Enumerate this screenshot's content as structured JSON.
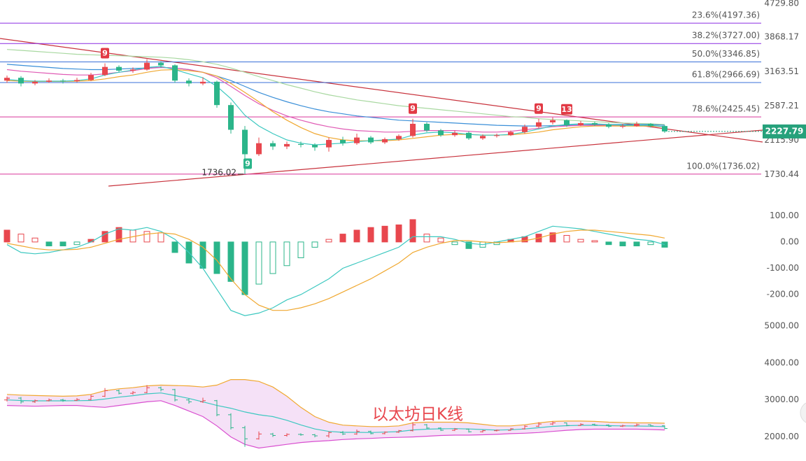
{
  "chart_data": [
    {
      "type": "candlestick",
      "title": "以太坊日K线",
      "log_scale": true,
      "ylim": [
        1467,
        4729.8
      ],
      "yticks": [
        {
          "value": 4729.8,
          "label": "4729.80"
        },
        3868.17,
        3163.51,
        2587.21,
        {
          "value": 2115.9,
          "label": "2115.90"
        },
        1730.44
      ],
      "up_color": "#e8474e",
      "down_color": "#2bb58a",
      "open": [
        3000,
        3050,
        2950,
        2980,
        3000,
        2990,
        3010,
        3100,
        3250,
        3180,
        3200,
        3330,
        3280,
        3000,
        2950,
        2980,
        2600,
        2250,
        1950,
        2080,
        2040,
        2070,
        2060,
        2030,
        2120,
        2080,
        2150,
        2090,
        2130,
        2170,
        2330,
        2240,
        2180,
        2210,
        2140,
        2170,
        2180,
        2220,
        2290,
        2350,
        2380,
        2310,
        2340,
        2320,
        2290,
        2300,
        2330,
        2300
      ],
      "high": [
        3090,
        3080,
        3010,
        3040,
        3030,
        3050,
        3140,
        3320,
        3280,
        3240,
        3400,
        3360,
        3300,
        3040,
        3060,
        3000,
        2640,
        2300,
        2150,
        2110,
        2100,
        2100,
        2080,
        2150,
        2160,
        2200,
        2170,
        2150,
        2190,
        2400,
        2350,
        2260,
        2240,
        2230,
        2190,
        2200,
        2240,
        2320,
        2400,
        2420,
        2390,
        2370,
        2360,
        2340,
        2330,
        2360,
        2340,
        2310
      ],
      "low": [
        2960,
        2900,
        2920,
        2960,
        2950,
        2970,
        2990,
        3080,
        3150,
        3140,
        3180,
        3230,
        2960,
        2900,
        2920,
        2560,
        2200,
        1736.02,
        1930,
        2000,
        2010,
        2030,
        1990,
        1980,
        2050,
        2060,
        2070,
        2070,
        2110,
        2150,
        2220,
        2160,
        2160,
        2120,
        2120,
        2150,
        2170,
        2200,
        2270,
        2320,
        2290,
        2300,
        2300,
        2270,
        2270,
        2290,
        2280,
        2210
      ],
      "close": [
        3050,
        2950,
        2980,
        3000,
        2990,
        3010,
        3100,
        3250,
        3180,
        3200,
        3330,
        3280,
        3000,
        2950,
        2980,
        2600,
        2250,
        1950,
        2080,
        2040,
        2070,
        2060,
        2030,
        2120,
        2080,
        2150,
        2090,
        2130,
        2170,
        2330,
        2240,
        2180,
        2210,
        2140,
        2170,
        2180,
        2220,
        2290,
        2350,
        2380,
        2310,
        2340,
        2320,
        2290,
        2300,
        2330,
        2300,
        2227.79
      ],
      "series": [
        {
          "color": "#a8d8a0",
          "values": [
            3600,
            3580,
            3560,
            3540,
            3520,
            3500,
            3490,
            3480,
            3470,
            3460,
            3450,
            3440,
            3420,
            3390,
            3350,
            3300,
            3230,
            3150,
            3070,
            3000,
            2930,
            2870,
            2810,
            2760,
            2720,
            2680,
            2650,
            2620,
            2590,
            2570,
            2550,
            2530,
            2510,
            2490,
            2470,
            2450,
            2430,
            2420,
            2400,
            2390,
            2380,
            2370,
            2360,
            2350,
            2340,
            2335,
            2330,
            2320
          ]
        },
        {
          "color": "#3a8fd8",
          "values": [
            3300,
            3280,
            3260,
            3240,
            3220,
            3210,
            3200,
            3200,
            3210,
            3220,
            3230,
            3240,
            3230,
            3200,
            3150,
            3080,
            3000,
            2900,
            2800,
            2720,
            2650,
            2590,
            2540,
            2500,
            2470,
            2440,
            2420,
            2400,
            2380,
            2370,
            2360,
            2350,
            2340,
            2330,
            2320,
            2310,
            2305,
            2300,
            2300,
            2305,
            2310,
            2315,
            2320,
            2320,
            2320,
            2320,
            2320,
            2310
          ]
        },
        {
          "color": "#e05bb5",
          "values": [
            3200,
            3170,
            3150,
            3130,
            3110,
            3100,
            3100,
            3120,
            3150,
            3180,
            3220,
            3240,
            3230,
            3200,
            3150,
            3050,
            2900,
            2750,
            2620,
            2520,
            2440,
            2380,
            2330,
            2290,
            2260,
            2240,
            2230,
            2220,
            2220,
            2230,
            2240,
            2240,
            2240,
            2230,
            2220,
            2220,
            2230,
            2250,
            2270,
            2290,
            2300,
            2310,
            2310,
            2310,
            2305,
            2300,
            2300,
            2290
          ]
        },
        {
          "color": "#f0a830",
          "values": [
            3000,
            2990,
            2985,
            2985,
            2985,
            2990,
            3000,
            3030,
            3070,
            3100,
            3150,
            3190,
            3200,
            3180,
            3150,
            3080,
            2950,
            2800,
            2650,
            2500,
            2380,
            2280,
            2200,
            2150,
            2120,
            2110,
            2110,
            2110,
            2120,
            2140,
            2160,
            2180,
            2190,
            2190,
            2180,
            2180,
            2185,
            2200,
            2220,
            2250,
            2270,
            2290,
            2300,
            2300,
            2300,
            2300,
            2300,
            2290
          ]
        },
        {
          "color": "#3cc8c0",
          "values": [
            3020,
            3000,
            2990,
            2990,
            2990,
            3000,
            3030,
            3100,
            3150,
            3190,
            3240,
            3260,
            3200,
            3120,
            3050,
            2900,
            2700,
            2450,
            2300,
            2200,
            2120,
            2080,
            2060,
            2070,
            2080,
            2100,
            2110,
            2120,
            2130,
            2180,
            2210,
            2220,
            2210,
            2190,
            2180,
            2180,
            2190,
            2220,
            2260,
            2300,
            2320,
            2330,
            2330,
            2320,
            2310,
            2310,
            2310,
            2290
          ]
        }
      ],
      "levels": [
        {
          "label": "23.6%(4197.36)",
          "value": 4197.36,
          "color": "#8a2be2"
        },
        {
          "label": "38.2%(3727.00)",
          "value": 3727.0,
          "color": "#8a2be2"
        },
        {
          "label": "50.0%(3346.85)",
          "value": 3346.85,
          "color": "#3a6fd8"
        },
        {
          "label": "61.8%(2966.69)",
          "value": 2966.69,
          "color": "#3a6fd8"
        },
        {
          "label": "78.6%(2425.45)",
          "value": 2425.45,
          "color": "#d9369a"
        },
        {
          "label": "100.0%(1736.02)",
          "value": 1736.02,
          "color": "#d9369a"
        }
      ],
      "td_marks": [
        {
          "label": "9",
          "color": "#e23a45"
        },
        {
          "label": "9",
          "color": "#2bb58a"
        },
        {
          "label": "9",
          "color": "#e23a45"
        },
        {
          "label": "9",
          "color": "#e23a45"
        },
        {
          "label": "13",
          "color": "#e23a45"
        }
      ],
      "price_tag_color": "#26a17b"
    },
    {
      "type": "macd",
      "ylim": [
        -290,
        122
      ],
      "yticks": [
        {
          "value": 100,
          "label": "100.00"
        },
        {
          "value": 0,
          "label": "0.00"
        },
        {
          "value": -100,
          "label": "-100.00"
        },
        {
          "value": -200,
          "label": "-200.00"
        }
      ],
      "up_color": "#e8474e",
      "down_color": "#2bb58a",
      "values": [
        45,
        30,
        15,
        -15,
        -15,
        -10,
        10,
        40,
        55,
        45,
        40,
        35,
        -40,
        -80,
        -100,
        -120,
        -150,
        -200,
        -160,
        -120,
        -90,
        -60,
        -20,
        10,
        30,
        45,
        55,
        60,
        65,
        85,
        30,
        15,
        -10,
        -25,
        -20,
        -10,
        10,
        20,
        30,
        35,
        25,
        10,
        5,
        -10,
        -15,
        -15,
        -10,
        -20
      ],
      "series": [
        {
          "color": "#3cc8c0",
          "values": [
            -10,
            -40,
            -45,
            -40,
            -30,
            -20,
            0,
            30,
            50,
            45,
            55,
            40,
            10,
            -40,
            -100,
            -180,
            -260,
            -280,
            -270,
            -250,
            -220,
            -200,
            -170,
            -140,
            -100,
            -80,
            -60,
            -40,
            -20,
            20,
            20,
            20,
            10,
            -5,
            -10,
            0,
            10,
            20,
            40,
            60,
            55,
            50,
            40,
            30,
            20,
            10,
            5,
            -10
          ]
        },
        {
          "color": "#f0a830",
          "values": [
            -5,
            -15,
            -25,
            -30,
            -30,
            -28,
            -20,
            -5,
            10,
            20,
            30,
            35,
            30,
            10,
            -20,
            -70,
            -140,
            -200,
            -240,
            -260,
            -260,
            -250,
            -235,
            -215,
            -190,
            -165,
            -140,
            -110,
            -80,
            -40,
            -20,
            -5,
            5,
            5,
            0,
            -3,
            0,
            5,
            15,
            30,
            40,
            45,
            45,
            40,
            35,
            30,
            25,
            15
          ]
        }
      ]
    },
    {
      "type": "bollinger",
      "ylim": [
        1426,
        5111
      ],
      "yticks": [
        {
          "value": 5000,
          "label": "5000.00"
        },
        {
          "value": 4000,
          "label": "4000.00"
        },
        {
          "value": 3000,
          "label": "3000.00"
        },
        {
          "value": 2000,
          "label": "2000.00"
        }
      ],
      "band_fill": "#f3dcf6",
      "series": [
        {
          "color": "#f0a830",
          "values": [
            3150,
            3130,
            3120,
            3110,
            3100,
            3110,
            3150,
            3250,
            3300,
            3330,
            3380,
            3400,
            3390,
            3380,
            3350,
            3400,
            3550,
            3550,
            3500,
            3350,
            3100,
            2800,
            2550,
            2400,
            2320,
            2300,
            2280,
            2280,
            2300,
            2380,
            2400,
            2400,
            2400,
            2380,
            2340,
            2300,
            2300,
            2330,
            2380,
            2420,
            2430,
            2430,
            2420,
            2400,
            2390,
            2380,
            2380,
            2370
          ]
        },
        {
          "color": "#3cc8c0",
          "values": [
            3000,
            2985,
            2975,
            2975,
            2975,
            2980,
            2985,
            3025,
            3075,
            3115,
            3165,
            3190,
            3120,
            3040,
            2950,
            2850,
            2775,
            2675,
            2600,
            2550,
            2450,
            2325,
            2215,
            2150,
            2125,
            2125,
            2120,
            2130,
            2145,
            2190,
            2210,
            2220,
            2225,
            2215,
            2200,
            2185,
            2195,
            2215,
            2250,
            2285,
            2305,
            2315,
            2315,
            2305,
            2300,
            2295,
            2290,
            2280
          ]
        },
        {
          "color": "#d94fd0",
          "values": [
            2850,
            2840,
            2830,
            2840,
            2850,
            2850,
            2820,
            2800,
            2850,
            2900,
            2950,
            2980,
            2850,
            2700,
            2550,
            2300,
            2000,
            1800,
            1700,
            1750,
            1800,
            1850,
            1880,
            1900,
            1930,
            1950,
            1960,
            1980,
            1990,
            2000,
            2020,
            2040,
            2050,
            2050,
            2060,
            2070,
            2090,
            2100,
            2120,
            2150,
            2180,
            2200,
            2210,
            2210,
            2210,
            2210,
            2200,
            2190
          ]
        }
      ]
    }
  ]
}
